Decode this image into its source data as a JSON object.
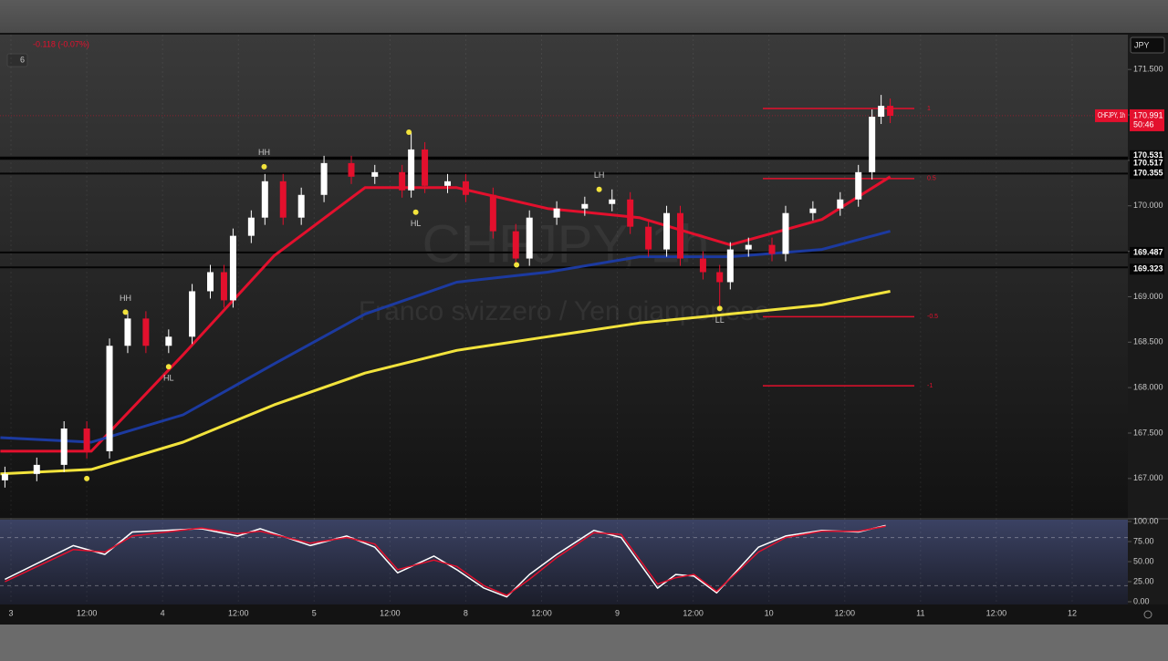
{
  "header": {
    "change": "-0.118 (-0.07%)",
    "interval_count": "6",
    "currency": "JPY"
  },
  "chart_data": [
    {
      "type": "candlestick",
      "title": "CHFJPY, 1h",
      "subtitle": "Franco svizzero / Yen giapponese",
      "x": [
        -0.08,
        0.34,
        0.7,
        1.0,
        1.3,
        1.54,
        1.78,
        2.08,
        2.39,
        2.63,
        2.81,
        2.93,
        3.17,
        3.35,
        3.59,
        3.83,
        4.13,
        4.49,
        4.8,
        5.16,
        5.28,
        5.46,
        5.76,
        6.0,
        6.36,
        6.66,
        6.84,
        7.2,
        7.57,
        7.93,
        8.17,
        8.41,
        8.65,
        8.83,
        9.13,
        9.35,
        9.49,
        9.73,
        10.04,
        10.22,
        10.58,
        10.94,
        11.18,
        11.36,
        11.48,
        11.6
      ],
      "open": [
        166.98,
        167.05,
        167.15,
        167.55,
        167.3,
        168.46,
        168.76,
        168.46,
        168.56,
        169.06,
        169.27,
        168.96,
        169.67,
        169.87,
        170.27,
        169.87,
        170.12,
        170.47,
        170.32,
        170.37,
        170.17,
        170.62,
        170.22,
        170.27,
        170.12,
        169.72,
        169.42,
        169.87,
        169.97,
        170.02,
        170.07,
        169.77,
        169.52,
        169.92,
        169.42,
        169.27,
        169.16,
        169.52,
        169.57,
        169.47,
        169.92,
        169.97,
        170.07,
        170.37,
        170.98,
        171.1
      ],
      "high": [
        167.13,
        167.23,
        167.63,
        167.63,
        168.54,
        168.84,
        168.84,
        168.64,
        169.14,
        169.35,
        169.35,
        169.75,
        169.95,
        170.35,
        170.35,
        170.2,
        170.55,
        170.55,
        170.45,
        170.45,
        170.81,
        170.7,
        170.35,
        170.35,
        170.2,
        169.8,
        169.95,
        170.05,
        170.1,
        170.18,
        170.15,
        169.85,
        170.0,
        170.0,
        169.5,
        169.35,
        169.6,
        169.65,
        169.65,
        170.0,
        170.05,
        170.15,
        170.45,
        171.06,
        171.22,
        171.18
      ],
      "low": [
        166.9,
        166.97,
        167.07,
        167.22,
        167.22,
        168.38,
        168.38,
        168.38,
        168.48,
        168.98,
        168.88,
        168.88,
        169.59,
        169.79,
        169.79,
        169.79,
        170.04,
        170.24,
        170.24,
        170.09,
        170.09,
        170.14,
        170.14,
        170.04,
        169.64,
        169.34,
        169.34,
        169.79,
        169.89,
        169.94,
        169.69,
        169.44,
        169.44,
        169.34,
        169.19,
        168.87,
        169.08,
        169.44,
        169.39,
        169.39,
        169.84,
        169.89,
        169.99,
        170.29,
        170.9,
        170.91
      ],
      "close": [
        167.05,
        167.15,
        167.55,
        167.3,
        168.46,
        168.76,
        168.46,
        168.56,
        169.06,
        169.27,
        168.96,
        169.67,
        169.87,
        170.27,
        169.87,
        170.12,
        170.47,
        170.32,
        170.37,
        170.17,
        170.62,
        170.22,
        170.27,
        170.12,
        169.72,
        169.42,
        169.87,
        169.97,
        170.02,
        170.07,
        169.77,
        169.52,
        169.92,
        169.42,
        169.27,
        169.16,
        169.52,
        169.57,
        169.47,
        169.92,
        169.97,
        170.07,
        170.37,
        170.98,
        171.1,
        170.99
      ],
      "up_color": "#ffffff",
      "down_color": "#e3102d",
      "overlay_x": [
        -0.14,
        1.06,
        2.27,
        3.47,
        4.67,
        5.88,
        7.08,
        8.29,
        9.49,
        10.7,
        11.6
      ],
      "overlays": [
        {
          "color": "#e3102d",
          "values": [
            167.3,
            167.3,
            168.36,
            169.45,
            170.2,
            170.2,
            169.97,
            169.87,
            169.57,
            169.85,
            170.32
          ]
        },
        {
          "color": "#1c3aa0",
          "values": [
            167.45,
            167.4,
            167.7,
            168.26,
            168.81,
            169.16,
            169.27,
            169.44,
            169.44,
            169.52,
            169.72
          ]
        },
        {
          "color": "#f2e33c",
          "values": [
            167.05,
            167.1,
            167.4,
            167.81,
            168.16,
            168.41,
            168.56,
            168.71,
            168.81,
            168.91,
            169.06
          ]
        }
      ],
      "levels": [
        {
          "value": 170.531,
          "label": "170.531"
        },
        {
          "value": 170.517,
          "label": "170.517"
        },
        {
          "value": 170.355,
          "label": "170.355"
        },
        {
          "value": 169.487,
          "label": "169.487"
        },
        {
          "value": 169.323,
          "label": "169.323"
        }
      ],
      "fib_levels": [
        {
          "value": 171.07,
          "label": "1"
        },
        {
          "value": 170.3,
          "label": "0.5"
        },
        {
          "value": 168.78,
          "label": "-0.5"
        },
        {
          "value": 168.02,
          "label": "-1"
        }
      ],
      "last_price": {
        "value": 170.991,
        "label": "170.991"
      },
      "countdown": "50:46",
      "pivots": [
        {
          "x": 1.0,
          "y": 167.0
        },
        {
          "x": 1.51,
          "y": 168.83,
          "label": "HH"
        },
        {
          "x": 2.08,
          "y": 168.23,
          "label": "HL"
        },
        {
          "x": 3.34,
          "y": 170.43,
          "label": "HH"
        },
        {
          "x": 5.25,
          "y": 170.81
        },
        {
          "x": 5.34,
          "y": 169.93,
          "label": "HL"
        },
        {
          "x": 6.67,
          "y": 169.35
        },
        {
          "x": 7.76,
          "y": 170.18,
          "label": "LH"
        },
        {
          "x": 9.35,
          "y": 168.87,
          "label": "LL"
        }
      ],
      "xlim": [
        -0.145,
        14.735
      ],
      "xticks": [
        {
          "value": 0,
          "label": "3"
        },
        {
          "value": 1,
          "label": "12:00"
        },
        {
          "value": 2,
          "label": "4"
        },
        {
          "value": 3,
          "label": "12:00"
        },
        {
          "value": 4,
          "label": "5"
        },
        {
          "value": 5,
          "label": "12:00"
        },
        {
          "value": 6,
          "label": "8"
        },
        {
          "value": 7,
          "label": "12:00"
        },
        {
          "value": 8,
          "label": "9"
        },
        {
          "value": 9,
          "label": "12:00"
        },
        {
          "value": 10,
          "label": "10"
        },
        {
          "value": 11,
          "label": "12:00"
        },
        {
          "value": 12,
          "label": "11"
        },
        {
          "value": 13,
          "label": "12:00"
        },
        {
          "value": 14,
          "label": "12"
        }
      ],
      "ylim": [
        166.567,
        171.883
      ],
      "yticks": [
        {
          "value": 167,
          "label": "167.000"
        },
        {
          "value": 167.5,
          "label": "167.500"
        },
        {
          "value": 168,
          "label": "168.000"
        },
        {
          "value": 168.5,
          "label": "168.500"
        },
        {
          "value": 169,
          "label": "169.000"
        },
        {
          "value": 169.5,
          "label": "169.500"
        },
        {
          "value": 170,
          "label": "170.000"
        },
        {
          "value": 170.5,
          "label": "170.500"
        },
        {
          "value": 171,
          "label": "171.000"
        },
        {
          "value": 171.5,
          "label": "171.500"
        }
      ]
    },
    {
      "type": "line",
      "x": [
        -0.08,
        0.82,
        1.24,
        1.6,
        2.51,
        2.99,
        3.29,
        3.95,
        4.43,
        4.8,
        5.1,
        5.58,
        5.88,
        6.24,
        6.54,
        6.84,
        7.2,
        7.69,
        8.05,
        8.53,
        8.77,
        9.01,
        9.31,
        9.86,
        10.22,
        10.7,
        11.18,
        11.54
      ],
      "series": [
        {
          "color": "#ffffff",
          "values": [
            28,
            70,
            59,
            87,
            91,
            82,
            91,
            70,
            82,
            68,
            36,
            57,
            40,
            17,
            6,
            34,
            59,
            89,
            80,
            17,
            34,
            32,
            11,
            68,
            82,
            89,
            87,
            95
          ]
        },
        {
          "color": "#e3102d",
          "values": [
            25,
            65,
            62,
            82,
            92,
            85,
            88,
            73,
            80,
            72,
            40,
            52,
            44,
            20,
            8,
            28,
            55,
            86,
            84,
            22,
            30,
            34,
            13,
            62,
            80,
            88,
            88,
            94
          ]
        }
      ],
      "levels": [
        80,
        20
      ],
      "xlim": [
        -0.145,
        14.735
      ],
      "ylim": [
        -3.4,
        102.3
      ],
      "yticks": [
        {
          "value": 100,
          "label": "100.00"
        },
        {
          "value": 75,
          "label": "75.00"
        },
        {
          "value": 50,
          "label": "50.00"
        },
        {
          "value": 25,
          "label": "25.00"
        },
        {
          "value": 0,
          "label": "0.00"
        }
      ]
    }
  ]
}
